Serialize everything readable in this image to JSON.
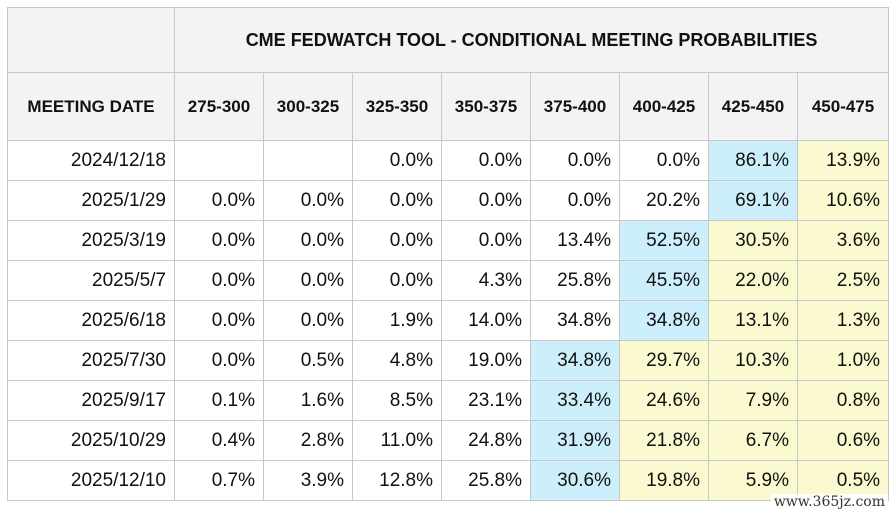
{
  "table": {
    "title": "CME FEDWATCH TOOL - CONDITIONAL MEETING PROBABILITIES",
    "date_header": "MEETING DATE",
    "columns": [
      "275-300",
      "300-325",
      "325-350",
      "350-375",
      "375-400",
      "400-425",
      "425-450",
      "450-475"
    ],
    "highlight_colors": {
      "blue": "#cdeffb",
      "yellow": "#fbf9cf"
    },
    "rows": [
      {
        "date": "2024/12/18",
        "values": [
          "",
          "",
          "0.0%",
          "0.0%",
          "0.0%",
          "0.0%",
          "86.1%",
          "13.9%"
        ],
        "shade": [
          "",
          "",
          "",
          "",
          "",
          "",
          "blue",
          "yellow"
        ]
      },
      {
        "date": "2025/1/29",
        "values": [
          "0.0%",
          "0.0%",
          "0.0%",
          "0.0%",
          "0.0%",
          "20.2%",
          "69.1%",
          "10.6%"
        ],
        "shade": [
          "",
          "",
          "",
          "",
          "",
          "",
          "blue",
          "yellow"
        ]
      },
      {
        "date": "2025/3/19",
        "values": [
          "0.0%",
          "0.0%",
          "0.0%",
          "0.0%",
          "13.4%",
          "52.5%",
          "30.5%",
          "3.6%"
        ],
        "shade": [
          "",
          "",
          "",
          "",
          "",
          "blue",
          "yellow",
          "yellow"
        ]
      },
      {
        "date": "2025/5/7",
        "values": [
          "0.0%",
          "0.0%",
          "0.0%",
          "4.3%",
          "25.8%",
          "45.5%",
          "22.0%",
          "2.5%"
        ],
        "shade": [
          "",
          "",
          "",
          "",
          "",
          "blue",
          "yellow",
          "yellow"
        ]
      },
      {
        "date": "2025/6/18",
        "values": [
          "0.0%",
          "0.0%",
          "1.9%",
          "14.0%",
          "34.8%",
          "34.8%",
          "13.1%",
          "1.3%"
        ],
        "shade": [
          "",
          "",
          "",
          "",
          "",
          "blue",
          "yellow",
          "yellow"
        ]
      },
      {
        "date": "2025/7/30",
        "values": [
          "0.0%",
          "0.5%",
          "4.8%",
          "19.0%",
          "34.8%",
          "29.7%",
          "10.3%",
          "1.0%"
        ],
        "shade": [
          "",
          "",
          "",
          "",
          "blue",
          "yellow",
          "yellow",
          "yellow"
        ]
      },
      {
        "date": "2025/9/17",
        "values": [
          "0.1%",
          "1.6%",
          "8.5%",
          "23.1%",
          "33.4%",
          "24.6%",
          "7.9%",
          "0.8%"
        ],
        "shade": [
          "",
          "",
          "",
          "",
          "blue",
          "yellow",
          "yellow",
          "yellow"
        ]
      },
      {
        "date": "2025/10/29",
        "values": [
          "0.4%",
          "2.8%",
          "11.0%",
          "24.8%",
          "31.9%",
          "21.8%",
          "6.7%",
          "0.6%"
        ],
        "shade": [
          "",
          "",
          "",
          "",
          "blue",
          "yellow",
          "yellow",
          "yellow"
        ]
      },
      {
        "date": "2025/12/10",
        "values": [
          "0.7%",
          "3.9%",
          "12.8%",
          "25.8%",
          "30.6%",
          "19.8%",
          "5.9%",
          "0.5%"
        ],
        "shade": [
          "",
          "",
          "",
          "",
          "blue",
          "yellow",
          "yellow",
          "yellow"
        ]
      }
    ]
  },
  "watermark": "www.365jz.com"
}
